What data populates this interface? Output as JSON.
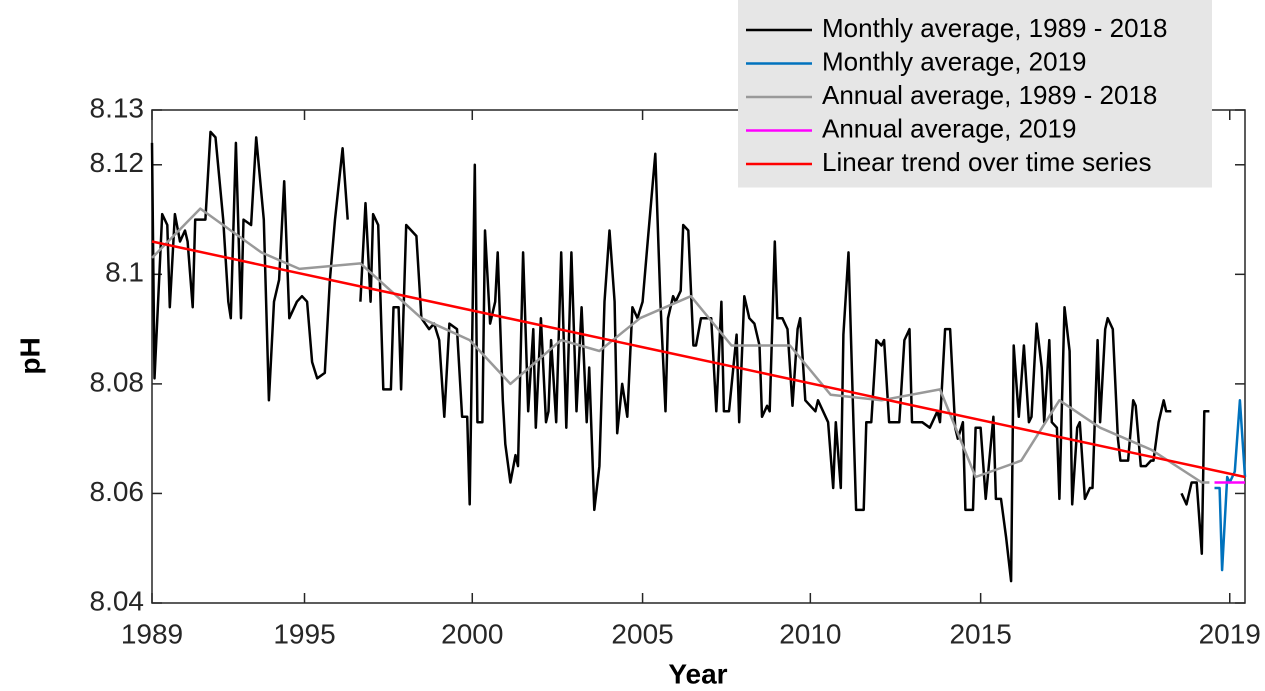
{
  "chart_data": {
    "type": "line",
    "xlabel": "Year",
    "ylabel": "pH",
    "xlim": [
      0,
      430
    ],
    "ylim": [
      8.04,
      8.13
    ],
    "xticks": [
      {
        "value": 0,
        "label": "1989"
      },
      {
        "value": 60,
        "label": "1995"
      },
      {
        "value": 126,
        "label": "2000"
      },
      {
        "value": 193,
        "label": "2005"
      },
      {
        "value": 259,
        "label": "2010"
      },
      {
        "value": 326,
        "label": "2015"
      },
      {
        "value": 424,
        "label": "2019"
      }
    ],
    "yticks": [
      8.04,
      8.06,
      8.08,
      8.1,
      8.12,
      8.13
    ],
    "legend": "upper right",
    "series": [
      {
        "name": "Monthly average, 1989 - 2018",
        "color": "#000000",
        "x": [
          0,
          1,
          4,
          6,
          7,
          9,
          11,
          13,
          14,
          16,
          17,
          21,
          23,
          25,
          28,
          30,
          31,
          33,
          35,
          36,
          39,
          41,
          44,
          46,
          48,
          50,
          52,
          54,
          57,
          59,
          61,
          63,
          65,
          68,
          70,
          72,
          75,
          77,
          78,
          82,
          84,
          86,
          87,
          89,
          91,
          94,
          95,
          97,
          98,
          100,
          102,
          104,
          106,
          109,
          111,
          113,
          115,
          117,
          120,
          122,
          124,
          125,
          127,
          128,
          130,
          131,
          133,
          135,
          136,
          138,
          139,
          141,
          143,
          144,
          146,
          148,
          150,
          151,
          153,
          155,
          156,
          157,
          159,
          161,
          163,
          165,
          167,
          169,
          171,
          172,
          174,
          176,
          178,
          180,
          182,
          183,
          185,
          187,
          189,
          191,
          193,
          195,
          198,
          200,
          202,
          203,
          205,
          206,
          208,
          209,
          211,
          213,
          214,
          216,
          218,
          220,
          222,
          224,
          225,
          227,
          230,
          231,
          233,
          235,
          237,
          239,
          240,
          242,
          243,
          245,
          246,
          248,
          250,
          252,
          254,
          255,
          257,
          259,
          261,
          262,
          264,
          266,
          268,
          269,
          271,
          272,
          274,
          276,
          277,
          280,
          281,
          283,
          285,
          287,
          288,
          290,
          291,
          294,
          296,
          298,
          299,
          301,
          303,
          306,
          309,
          310,
          312,
          314,
          316,
          317,
          319,
          320,
          323,
          324,
          326,
          328,
          331,
          332,
          334,
          336,
          338,
          339,
          341,
          343,
          345,
          346,
          348,
          350,
          351,
          353,
          354,
          356,
          357,
          359,
          361,
          362,
          364,
          365,
          367,
          369,
          370,
          372,
          373,
          375,
          376,
          378,
          380,
          381,
          383,
          384,
          386,
          387,
          389,
          391,
          393,
          394,
          396,
          398,
          399,
          401,
          402,
          405,
          407,
          409,
          411,
          413,
          414,
          416
        ],
        "values": [
          8.124,
          8.081,
          8.111,
          8.109,
          8.094,
          8.111,
          8.106,
          8.108,
          8.106,
          8.094,
          8.11,
          8.11,
          8.126,
          8.125,
          8.11,
          8.095,
          8.092,
          8.124,
          8.092,
          8.11,
          8.109,
          8.125,
          8.11,
          8.077,
          8.095,
          8.099,
          8.117,
          8.092,
          8.095,
          8.096,
          8.095,
          8.084,
          8.081,
          8.082,
          8.099,
          8.11,
          8.123,
          8.11,
          null,
          8.095,
          8.113,
          8.095,
          8.111,
          8.109,
          8.079,
          8.079,
          8.094,
          8.094,
          8.079,
          8.109,
          8.108,
          8.107,
          8.092,
          8.09,
          8.091,
          8.088,
          8.074,
          8.091,
          8.09,
          8.074,
          8.074,
          8.058,
          8.12,
          8.073,
          8.073,
          8.108,
          8.091,
          8.095,
          8.104,
          8.077,
          8.069,
          8.062,
          8.067,
          8.065,
          8.104,
          8.075,
          8.09,
          8.072,
          8.092,
          8.073,
          8.075,
          8.088,
          8.073,
          8.104,
          8.072,
          8.104,
          8.075,
          8.094,
          8.073,
          8.083,
          8.057,
          8.065,
          8.095,
          8.108,
          8.095,
          8.071,
          8.08,
          8.074,
          8.094,
          8.092,
          8.095,
          8.106,
          8.122,
          8.095,
          8.075,
          8.092,
          8.096,
          8.095,
          8.097,
          8.109,
          8.108,
          8.087,
          8.087,
          8.092,
          8.092,
          8.092,
          8.075,
          8.095,
          8.075,
          8.075,
          8.089,
          8.073,
          8.096,
          8.092,
          8.091,
          8.087,
          8.074,
          8.076,
          8.075,
          8.106,
          8.092,
          8.092,
          8.09,
          8.076,
          8.09,
          8.092,
          8.077,
          8.076,
          8.075,
          8.077,
          8.075,
          8.073,
          8.061,
          8.073,
          8.061,
          8.089,
          8.104,
          8.072,
          8.057,
          8.057,
          8.073,
          8.073,
          8.088,
          8.087,
          8.088,
          8.073,
          8.073,
          8.073,
          8.088,
          8.09,
          8.073,
          8.073,
          8.073,
          8.072,
          8.075,
          8.073,
          8.09,
          8.09,
          8.072,
          8.07,
          8.073,
          8.057,
          8.057,
          8.072,
          8.072,
          8.059,
          8.074,
          8.059,
          8.059,
          8.052,
          8.044,
          8.087,
          8.074,
          8.087,
          8.073,
          8.074,
          8.091,
          8.083,
          8.073,
          8.088,
          8.073,
          8.072,
          8.059,
          8.094,
          8.086,
          8.058,
          8.072,
          8.073,
          8.059,
          8.061,
          8.061,
          8.088,
          8.073,
          8.09,
          8.092,
          8.09,
          8.07,
          8.066,
          8.066,
          8.066,
          8.077,
          8.076,
          8.065,
          8.065,
          8.066,
          8.066,
          8.073,
          8.077,
          8.075,
          8.075,
          null,
          8.06,
          8.058,
          8.062,
          8.062,
          8.049,
          8.075,
          8.075
        ]
      },
      {
        "name": "Monthly average, 2019",
        "color": "#0072bd",
        "x": [
          418,
          420,
          421,
          423,
          424,
          426,
          428,
          430
        ],
        "values": [
          8.061,
          8.061,
          8.046,
          8.063,
          8.062,
          8.064,
          8.077,
          8.063
        ]
      },
      {
        "name": "Annual average, 1989 - 2018",
        "color": "#999999",
        "x": [
          0,
          19,
          43,
          58,
          82,
          106,
          125,
          141,
          161,
          176,
          192,
          212,
          228,
          251,
          267,
          287,
          310,
          324,
          342,
          357,
          373,
          393,
          413,
          416
        ],
        "values": [
          8.103,
          8.112,
          8.104,
          8.101,
          8.102,
          8.092,
          8.088,
          8.08,
          8.088,
          8.086,
          8.092,
          8.096,
          8.087,
          8.087,
          8.078,
          8.077,
          8.079,
          8.063,
          8.066,
          8.077,
          8.072,
          8.068,
          8.062,
          8.062
        ]
      },
      {
        "name": "Annual average, 2019",
        "color": "#ff00ff",
        "x": [
          418,
          430
        ],
        "values": [
          8.062,
          8.062
        ]
      },
      {
        "name": "Linear trend over time series",
        "color": "#ff0000",
        "x": [
          0,
          430
        ],
        "values": [
          8.106,
          8.063
        ]
      }
    ]
  }
}
